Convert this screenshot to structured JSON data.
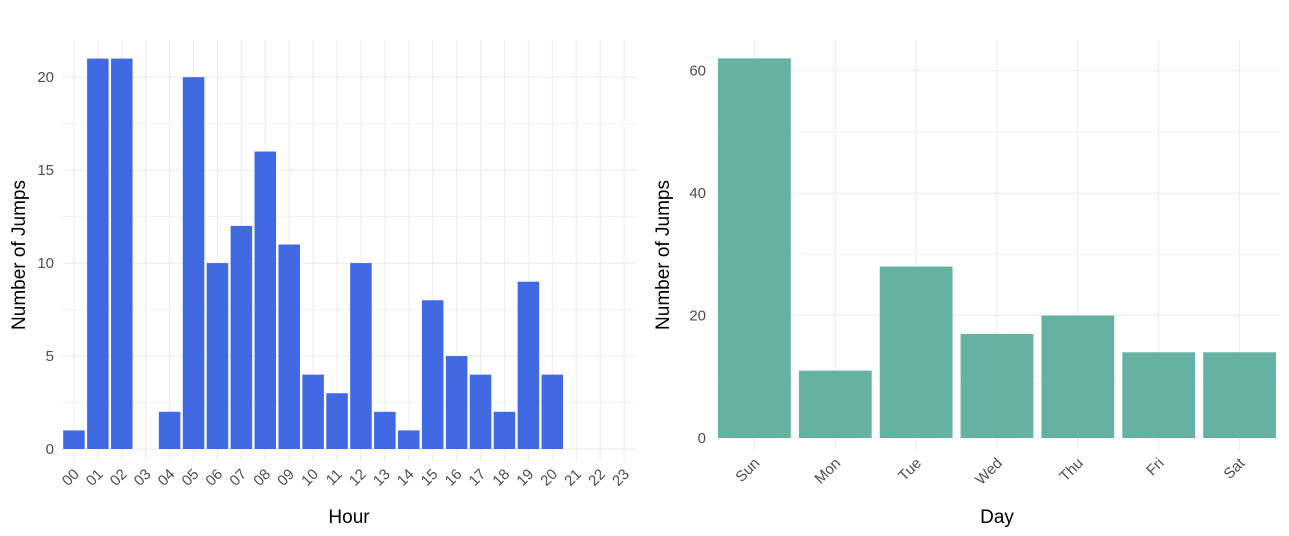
{
  "chart_data": [
    {
      "type": "bar",
      "xlabel": "Hour",
      "ylabel": "Number of Jumps",
      "categories": [
        "00",
        "01",
        "02",
        "03",
        "04",
        "05",
        "06",
        "07",
        "08",
        "09",
        "10",
        "11",
        "12",
        "13",
        "14",
        "15",
        "16",
        "17",
        "18",
        "19",
        "20",
        "21",
        "22",
        "23"
      ],
      "values": [
        1,
        21,
        21,
        0,
        2,
        20,
        10,
        12,
        16,
        11,
        4,
        3,
        10,
        2,
        1,
        8,
        5,
        4,
        2,
        9,
        4,
        0,
        0,
        0
      ],
      "ylim": [
        0,
        22
      ],
      "yticks": [
        0,
        5,
        10,
        15,
        20
      ],
      "bar_color": "#4169e1",
      "grid": true,
      "legend": "none"
    },
    {
      "type": "bar",
      "xlabel": "Day",
      "ylabel": "Number of Jumps",
      "categories": [
        "Sun",
        "Mon",
        "Tue",
        "Wed",
        "Thu",
        "Fri",
        "Sat"
      ],
      "values": [
        62,
        11,
        28,
        17,
        20,
        14,
        14
      ],
      "ylim": [
        0,
        65
      ],
      "yticks": [
        0,
        20,
        40,
        60
      ],
      "bar_color": "#66b2a2",
      "grid": true,
      "legend": "none"
    }
  ]
}
